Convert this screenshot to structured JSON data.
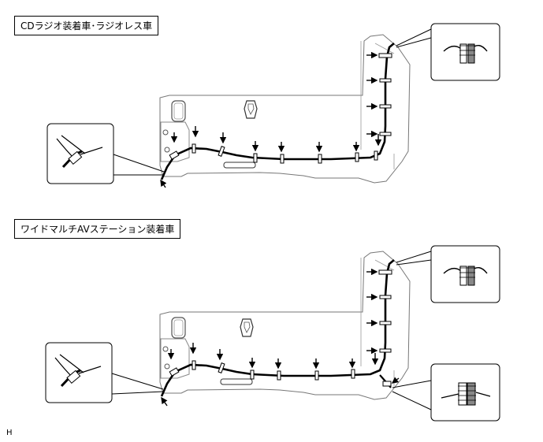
{
  "panels": [
    {
      "label": "CDラジオ装着車･ラジオレス車"
    },
    {
      "label": "ワイドマルチAVステーション装着車"
    }
  ],
  "footer": {
    "code": "H"
  }
}
